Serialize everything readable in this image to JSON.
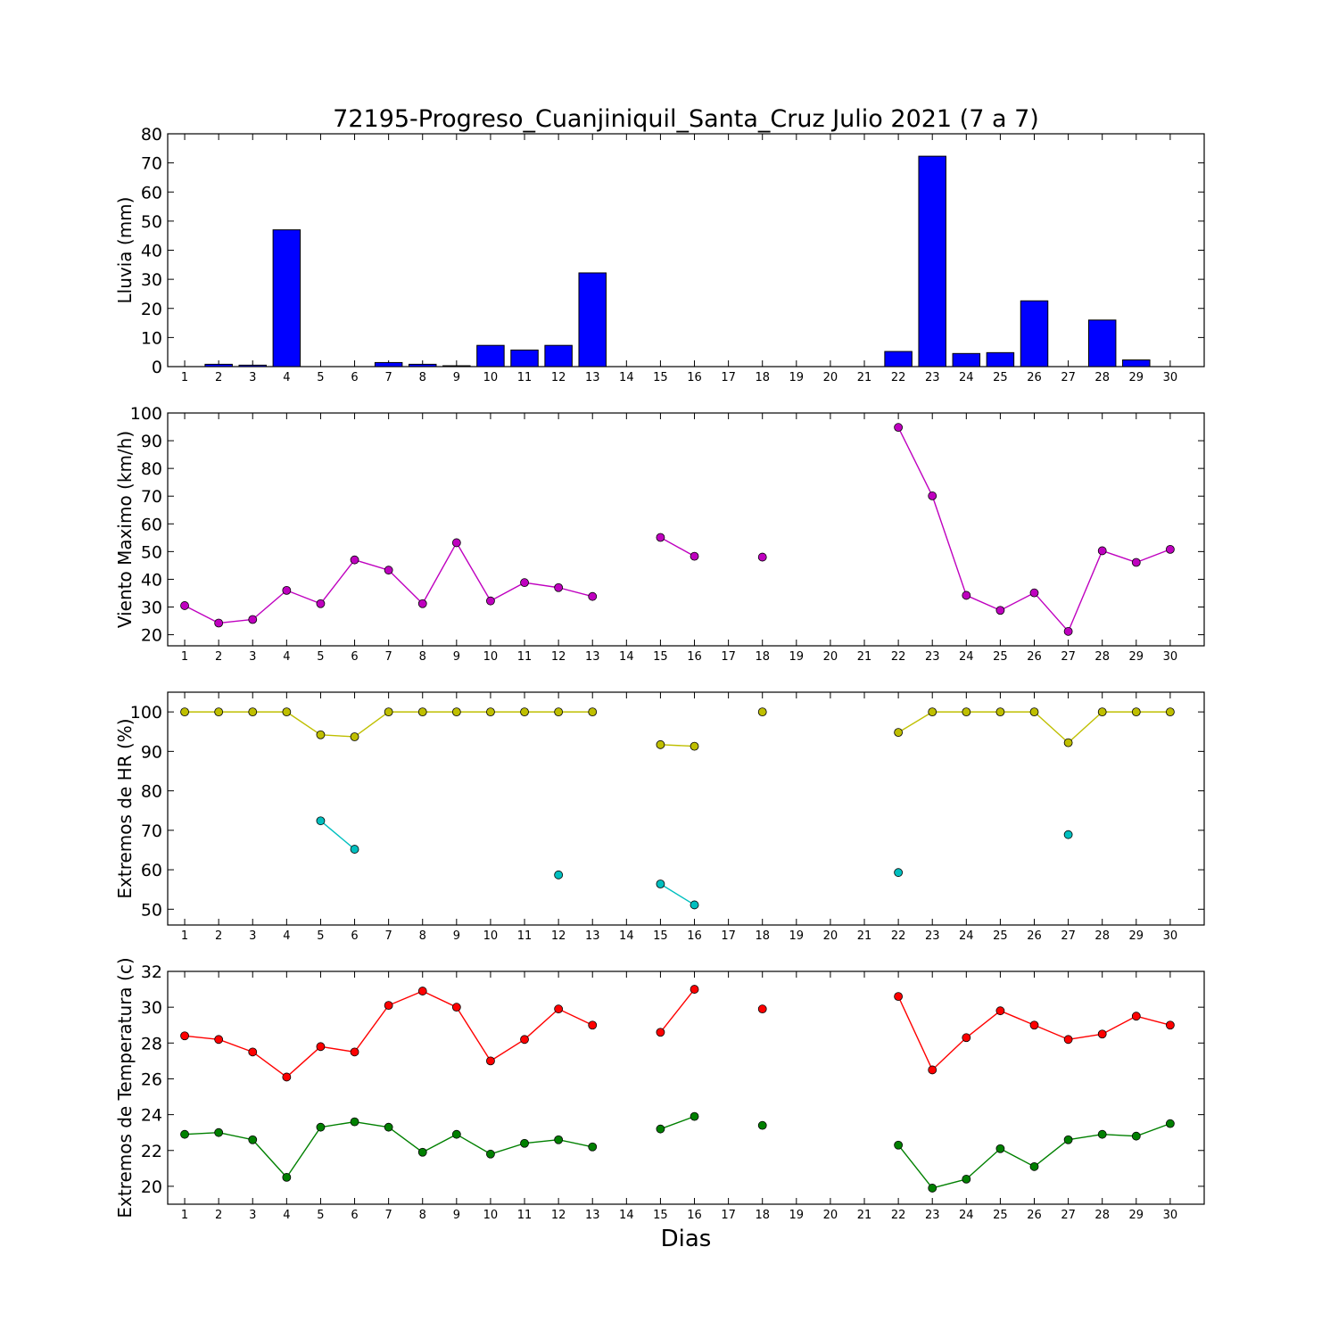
{
  "chart_data": [
    {
      "type": "bar",
      "title": "72195-Progreso_Cuanjiniquil_Santa_Cruz Julio 2021  (7 a 7)",
      "ylabel": "Lluvia (mm)",
      "ylim": [
        0,
        80
      ],
      "yticks": [
        "0",
        "10",
        "20",
        "30",
        "40",
        "50",
        "60",
        "70",
        "80"
      ],
      "categories": [
        "1",
        "2",
        "3",
        "4",
        "5",
        "6",
        "7",
        "8",
        "9",
        "10",
        "11",
        "12",
        "13",
        "14",
        "15",
        "16",
        "17",
        "18",
        "19",
        "20",
        "21",
        "22",
        "23",
        "24",
        "25",
        "26",
        "27",
        "28",
        "29",
        "30"
      ],
      "values": [
        0,
        0.8,
        0.5,
        47,
        0,
        0,
        1.4,
        0.8,
        0.3,
        7.3,
        5.7,
        7.3,
        32.2,
        0,
        0,
        0,
        0,
        0,
        0,
        0,
        0,
        5.2,
        72.3,
        4.5,
        4.8,
        22.6,
        0,
        16,
        2.3,
        0
      ],
      "color": "#0000ff"
    },
    {
      "type": "line",
      "ylabel": "Viento Maximo (km/h)",
      "ylim": [
        16,
        100
      ],
      "yticks": [
        "20",
        "30",
        "40",
        "50",
        "60",
        "70",
        "80",
        "90",
        "100"
      ],
      "categories": [
        "1",
        "2",
        "3",
        "4",
        "5",
        "6",
        "7",
        "8",
        "9",
        "10",
        "11",
        "12",
        "13",
        "14",
        "15",
        "16",
        "17",
        "18",
        "19",
        "20",
        "21",
        "22",
        "23",
        "24",
        "25",
        "26",
        "27",
        "28",
        "29",
        "30"
      ],
      "series": [
        {
          "values": [
            30.5,
            24.2,
            25.5,
            36,
            31.2,
            47,
            43.3,
            31.2,
            53.2,
            32.2,
            38.8,
            37,
            33.8,
            null,
            55.1,
            48.3,
            null,
            48,
            null,
            null,
            null,
            94.8,
            70.1,
            34.2,
            28.8,
            35.1,
            21.2,
            50.3,
            46.1,
            50.8
          ],
          "color": "#bf00bf"
        }
      ]
    },
    {
      "type": "line",
      "ylabel": "Extremos de HR (%)",
      "ylim": [
        46,
        105
      ],
      "yticks": [
        "50",
        "60",
        "70",
        "80",
        "90",
        "100"
      ],
      "categories": [
        "1",
        "2",
        "3",
        "4",
        "5",
        "6",
        "7",
        "8",
        "9",
        "10",
        "11",
        "12",
        "13",
        "14",
        "15",
        "16",
        "17",
        "18",
        "19",
        "20",
        "21",
        "22",
        "23",
        "24",
        "25",
        "26",
        "27",
        "28",
        "29",
        "30"
      ],
      "series": [
        {
          "values": [
            100,
            100,
            100,
            100,
            94.2,
            93.7,
            100,
            100,
            100,
            100,
            100,
            100,
            100,
            null,
            91.7,
            91.3,
            null,
            100,
            null,
            null,
            null,
            94.8,
            100,
            100,
            100,
            100,
            92.2,
            100,
            100,
            100
          ],
          "color": "#bfbf00"
        },
        {
          "values": [
            null,
            null,
            null,
            null,
            72.4,
            65.2,
            null,
            null,
            null,
            null,
            null,
            58.7,
            null,
            null,
            56.4,
            51.1,
            null,
            null,
            null,
            null,
            null,
            59.3,
            null,
            null,
            null,
            null,
            68.9,
            null,
            null,
            null
          ],
          "color": "#00bfbf"
        }
      ]
    },
    {
      "type": "line",
      "ylabel": "Extremos de Temperatura (c)",
      "xlabel": "Dias",
      "ylim": [
        19,
        32
      ],
      "yticks": [
        "20",
        "22",
        "24",
        "26",
        "28",
        "30",
        "32"
      ],
      "categories": [
        "1",
        "2",
        "3",
        "4",
        "5",
        "6",
        "7",
        "8",
        "9",
        "10",
        "11",
        "12",
        "13",
        "14",
        "15",
        "16",
        "17",
        "18",
        "19",
        "20",
        "21",
        "22",
        "23",
        "24",
        "25",
        "26",
        "27",
        "28",
        "29",
        "30"
      ],
      "series": [
        {
          "values": [
            28.4,
            28.2,
            27.5,
            26.1,
            27.8,
            27.5,
            30.1,
            30.9,
            30,
            27,
            28.2,
            29.9,
            29,
            null,
            28.6,
            31,
            null,
            29.9,
            null,
            null,
            null,
            30.6,
            26.5,
            28.3,
            29.8,
            29,
            28.2,
            28.5,
            29.5,
            29
          ],
          "color": "#ff0000"
        },
        {
          "values": [
            22.9,
            23,
            22.6,
            20.5,
            23.3,
            23.6,
            23.3,
            21.9,
            22.9,
            21.8,
            22.4,
            22.6,
            22.2,
            null,
            23.2,
            23.9,
            null,
            23.4,
            null,
            null,
            null,
            22.3,
            19.9,
            20.4,
            22.1,
            21.1,
            22.6,
            22.9,
            22.8,
            23.5
          ],
          "color": "#008000"
        }
      ]
    }
  ]
}
